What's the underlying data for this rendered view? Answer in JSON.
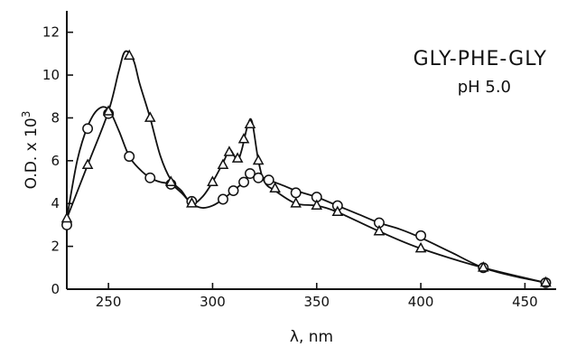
{
  "chart_data": {
    "type": "line",
    "title": "",
    "annotations": [
      "GLY-PHE-GLY",
      "pH 5.0"
    ],
    "xlabel": "λ, nm",
    "ylabel": "O.D. x 10",
    "ylabel_superscript": "3",
    "xlim": [
      230,
      465
    ],
    "ylim": [
      0,
      13
    ],
    "xticks": [
      250,
      300,
      350,
      400,
      450
    ],
    "yticks": [
      0,
      2,
      4,
      6,
      8,
      10,
      12
    ],
    "grid": false,
    "legend": "none",
    "series": [
      {
        "marker": "circle",
        "x": [
          230,
          240,
          250,
          260,
          270,
          280,
          290,
          305,
          310,
          315,
          318,
          322,
          327,
          340,
          350,
          360,
          380,
          400,
          430,
          460
        ],
        "y": [
          3.0,
          7.5,
          8.2,
          6.2,
          5.2,
          4.9,
          4.1,
          4.2,
          4.6,
          5.0,
          5.4,
          5.2,
          5.1,
          4.5,
          4.3,
          3.9,
          3.1,
          2.5,
          1.0,
          0.3
        ],
        "curve_x": [
          230,
          235,
          240,
          245,
          250,
          255,
          260,
          265,
          270,
          275,
          280,
          285,
          290,
          295,
          300,
          305,
          310,
          315,
          318,
          322,
          327,
          335,
          340,
          350,
          360,
          370,
          380,
          390,
          400,
          415,
          430,
          445,
          460
        ],
        "curve_y": [
          3.3,
          6.0,
          7.6,
          8.4,
          8.4,
          7.4,
          6.2,
          5.6,
          5.2,
          5.0,
          4.9,
          4.5,
          4.0,
          3.8,
          3.9,
          4.2,
          4.6,
          5.0,
          5.3,
          5.3,
          5.1,
          4.8,
          4.6,
          4.3,
          3.9,
          3.5,
          3.1,
          2.8,
          2.4,
          1.7,
          1.0,
          0.6,
          0.3
        ]
      },
      {
        "marker": "triangle",
        "x": [
          230,
          240,
          250,
          260,
          270,
          280,
          290,
          300,
          305,
          308,
          312,
          315,
          318,
          322,
          330,
          340,
          350,
          360,
          380,
          400,
          430,
          460
        ],
        "y": [
          3.3,
          5.8,
          8.3,
          10.9,
          8.0,
          5.0,
          4.0,
          5.0,
          5.8,
          6.4,
          6.1,
          7.0,
          7.7,
          6.0,
          4.7,
          4.0,
          3.9,
          3.6,
          2.7,
          1.9,
          1.0,
          0.3
        ],
        "curve_x": [
          230,
          240,
          250,
          255,
          258,
          262,
          265,
          270,
          275,
          280,
          285,
          290,
          295,
          300,
          305,
          308,
          310,
          312,
          314,
          317,
          319,
          322,
          325,
          330,
          340,
          350,
          360,
          380,
          400,
          430,
          460
        ],
        "curve_y": [
          3.3,
          5.8,
          8.3,
          10.2,
          11.1,
          10.7,
          9.6,
          8.0,
          6.2,
          5.1,
          4.6,
          4.0,
          4.3,
          5.0,
          5.9,
          6.5,
          6.3,
          6.0,
          6.5,
          7.7,
          7.8,
          6.0,
          5.0,
          4.6,
          4.0,
          3.9,
          3.6,
          2.7,
          1.9,
          1.0,
          0.3
        ]
      }
    ]
  }
}
